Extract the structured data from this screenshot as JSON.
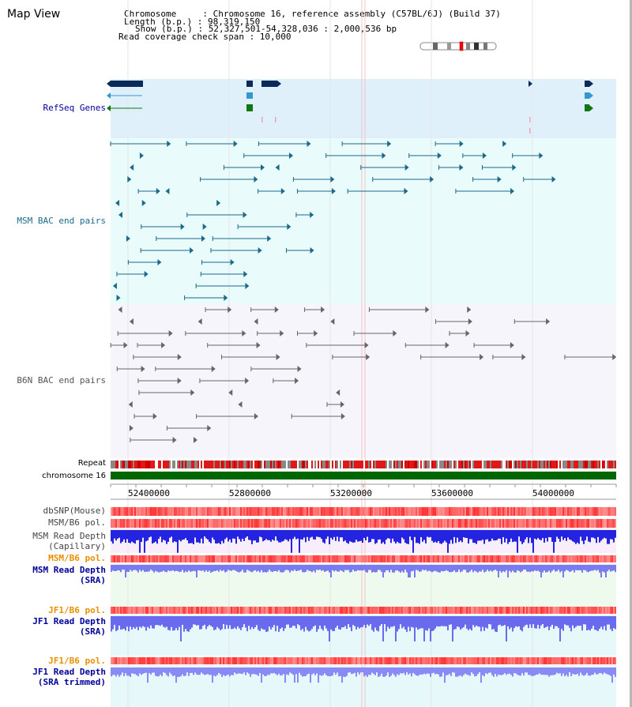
{
  "title": "Map View",
  "info": {
    "chromosome_label": "Chromosome     : Chromosome 16, reference assembly (C57BL/6J) (Build 37)",
    "length_label": "Length (b.p.) : 98,319,150",
    "show_label": "Show (b.p.) : 52,327,501-54,328,036 : 2,000,536 bp",
    "coverage_label": "Read coverage check span : 10,000"
  },
  "tracks": {
    "refseq": "RefSeq Genes",
    "msm_bac": "MSM BAC end pairs",
    "b6n_bac": "B6N BAC end pairs",
    "repeat": "Repeat",
    "chromosome": "chromosome 16",
    "dbsnp": "dbSNP(Mouse)",
    "msm_b6_pol": "MSM/B6 pol.",
    "msm_depth_cap_1": "MSM Read Depth",
    "msm_depth_cap_2": "(Capillary)",
    "msm_b6_pol_2": "MSM/B6 pol.",
    "msm_depth_sra_1": "MSM Read Depth",
    "msm_depth_sra_2": "(SRA)",
    "jf1_b6_pol": "JF1/B6 pol.",
    "jf1_depth_sra_1": "JF1 Read Depth",
    "jf1_depth_sra_2": "(SRA)",
    "jf1_b6_pol_2": "JF1/B6 pol.",
    "jf1_depth_trim_1": "JF1 Read Depth",
    "jf1_depth_trim_2": "(SRA trimmed)"
  },
  "ruler_ticks": [
    "52400000",
    "52800000",
    "53200000",
    "53600000",
    "54000000"
  ],
  "colors": {
    "refseq_band": "#dff0fa",
    "msm_band": "#e9fbfb",
    "b6n_band": "#f5f5fb",
    "chromosome_bar": "#006600",
    "snp_red": "#ff2020",
    "depth_blue": "#2b2be0",
    "depth_light": "#7b7bf0",
    "label_orange": "#e89000",
    "label_blue": "#000099",
    "label_teal": "#1a6a8a"
  }
}
